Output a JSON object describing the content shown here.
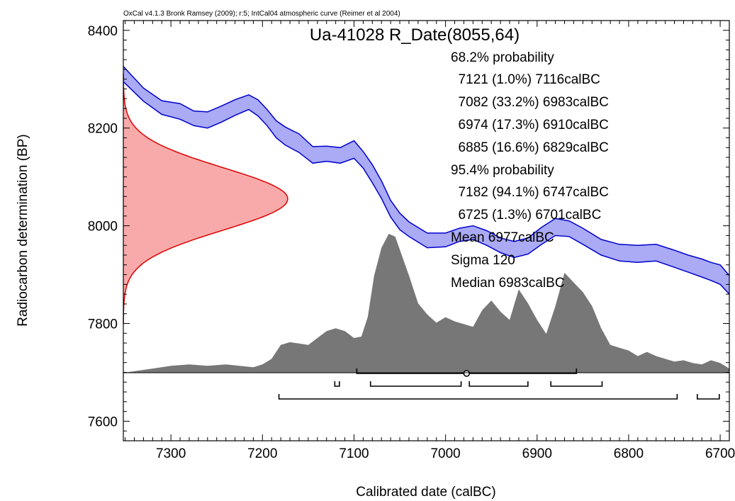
{
  "header": {
    "source": "OxCal v4.1.3 Bronk Ramsey (2009); r:5; IntCal04 atmospheric curve (Reimer et al 2004)"
  },
  "chart_data": {
    "type": "area",
    "title": "Ua-41028 R_Date(8055,64)",
    "xlabel": "Calibrated date (calBC)",
    "ylabel": "Radiocarbon determination (BP)",
    "xlim": [
      7352,
      6690
    ],
    "ylim": [
      7560,
      8420
    ],
    "x_ticks": [
      7300,
      7200,
      7100,
      7000,
      6900,
      6800,
      6700
    ],
    "y_ticks": [
      7600,
      7800,
      8000,
      8200,
      8400
    ],
    "grid": false,
    "colors": {
      "calibration_curve": "#0000cc",
      "calibration_fill": "#aaaaf5",
      "radiocarbon_fill": "#f8aaaa",
      "radiocarbon_line": "#dd0000",
      "posterior_fill": "#777777"
    },
    "summary": [
      "68.2% probability",
      "  7121 (1.0%) 7116calBC",
      "  7082 (33.2%) 6983calBC",
      "  6974 (17.3%) 6910calBC",
      "  6885 (16.6%) 6829calBC",
      "95.4% probability",
      "  7182 (94.1%) 6747calBC",
      "  6725 (1.3%) 6701calBC",
      "Mean 6977calBC",
      "Sigma 120",
      "Median 6983calBC"
    ],
    "calibration_curve": {
      "x": [
        7352,
        7330,
        7310,
        7290,
        7275,
        7260,
        7245,
        7230,
        7215,
        7205,
        7195,
        7185,
        7175,
        7160,
        7145,
        7130,
        7115,
        7100,
        7090,
        7080,
        7070,
        7060,
        7050,
        7040,
        7020,
        7000,
        6985,
        6970,
        6955,
        6940,
        6925,
        6910,
        6895,
        6880,
        6865,
        6850,
        6830,
        6810,
        6790,
        6770,
        6750,
        6735,
        6720,
        6710,
        6700,
        6690
      ],
      "upper": [
        8326,
        8282,
        8256,
        8250,
        8235,
        8233,
        8245,
        8258,
        8268,
        8258,
        8238,
        8215,
        8202,
        8188,
        8162,
        8163,
        8160,
        8174,
        8152,
        8125,
        8092,
        8052,
        8026,
        8008,
        7985,
        7985,
        7995,
        8000,
        7990,
        7975,
        7968,
        7975,
        7997,
        8015,
        8010,
        7995,
        7972,
        7962,
        7960,
        7962,
        7950,
        7940,
        7932,
        7925,
        7920,
        7898
      ],
      "lower": [
        8295,
        8255,
        8228,
        8218,
        8205,
        8200,
        8212,
        8226,
        8238,
        8225,
        8205,
        8180,
        8165,
        8150,
        8128,
        8132,
        8128,
        8138,
        8118,
        8088,
        8056,
        8018,
        7992,
        7978,
        7955,
        7957,
        7968,
        7972,
        7960,
        7945,
        7935,
        7942,
        7962,
        7980,
        7978,
        7962,
        7940,
        7928,
        7925,
        7928,
        7915,
        7905,
        7895,
        7888,
        7880,
        7860
      ]
    },
    "radiocarbon_date": {
      "mean": 8055,
      "sigma": 64
    },
    "posterior_distribution": {
      "x": [
        7352,
        7320,
        7300,
        7280,
        7260,
        7240,
        7225,
        7210,
        7200,
        7190,
        7180,
        7170,
        7160,
        7150,
        7140,
        7130,
        7120,
        7110,
        7100,
        7092,
        7085,
        7078,
        7070,
        7062,
        7055,
        7048,
        7040,
        7030,
        7020,
        7010,
        7000,
        6990,
        6980,
        6970,
        6960,
        6950,
        6940,
        6930,
        6920,
        6910,
        6900,
        6890,
        6880,
        6870,
        6860,
        6850,
        6840,
        6830,
        6820,
        6810,
        6800,
        6790,
        6780,
        6770,
        6760,
        6750,
        6740,
        6730,
        6720,
        6710,
        6700,
        6690
      ],
      "relative_height": [
        0.0,
        0.03,
        0.05,
        0.06,
        0.05,
        0.06,
        0.05,
        0.04,
        0.06,
        0.1,
        0.2,
        0.22,
        0.21,
        0.2,
        0.25,
        0.3,
        0.32,
        0.3,
        0.25,
        0.26,
        0.4,
        0.7,
        0.9,
        1.0,
        0.98,
        0.85,
        0.7,
        0.5,
        0.42,
        0.36,
        0.4,
        0.37,
        0.35,
        0.33,
        0.45,
        0.52,
        0.44,
        0.38,
        0.6,
        0.5,
        0.38,
        0.28,
        0.48,
        0.72,
        0.65,
        0.58,
        0.48,
        0.32,
        0.2,
        0.18,
        0.16,
        0.12,
        0.15,
        0.12,
        0.1,
        0.08,
        0.09,
        0.07,
        0.06,
        0.09,
        0.07,
        0.03
      ]
    },
    "ranges": {
      "mean_sigma": {
        "mean": 6977,
        "from": 7097,
        "to": 6857
      },
      "prob_68_2": [
        [
          7121,
          7116
        ],
        [
          7082,
          6983
        ],
        [
          6974,
          6910
        ],
        [
          6885,
          6829
        ]
      ],
      "prob_95_4": [
        [
          7182,
          6747
        ],
        [
          6725,
          6701
        ]
      ]
    }
  }
}
